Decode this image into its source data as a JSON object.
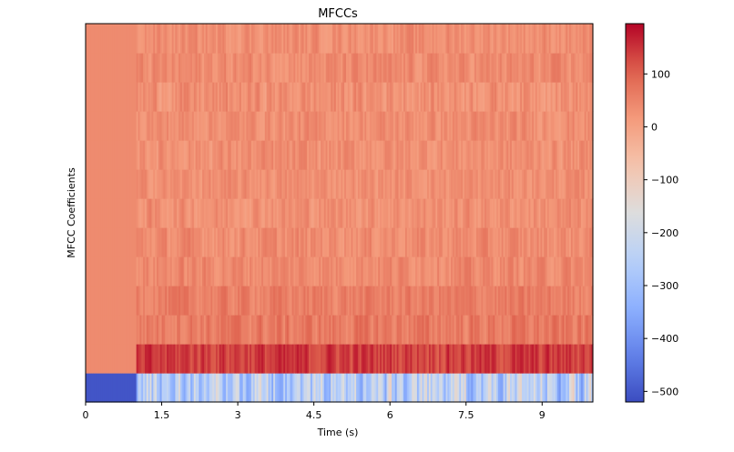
{
  "chart_data": {
    "type": "heatmap",
    "title": "MFCCs",
    "xlabel": "Time (s)",
    "ylabel": "MFCC Coefficients",
    "xlim": [
      0,
      10
    ],
    "x_ticks": [
      0,
      1.5,
      3,
      4.5,
      6,
      7.5,
      9
    ],
    "x_tick_labels": [
      "0",
      "1.5",
      "3",
      "4.5",
      "6",
      "7.5",
      "9"
    ],
    "n_coefficients": 13,
    "silence_until_s": 1.0,
    "colormap": "coolwarm",
    "colorbar": {
      "vmin": -520,
      "vmax": 195,
      "ticks": [
        100,
        0,
        -100,
        -200,
        -300,
        -400,
        -500
      ],
      "tick_labels": [
        "100",
        "0",
        "−100",
        "−200",
        "−300",
        "−400",
        "−500"
      ]
    },
    "coefficient_levels": [
      {
        "coef": 0,
        "silence": -505,
        "min": -420,
        "max": -80
      },
      {
        "coef": 1,
        "silence": 40,
        "min": 90,
        "max": 190
      },
      {
        "coef": 2,
        "silence": 40,
        "min": 20,
        "max": 110
      },
      {
        "coef": 3,
        "silence": 40,
        "min": 20,
        "max": 95
      },
      {
        "coef": 4,
        "silence": 40,
        "min": 5,
        "max": 80
      },
      {
        "coef": 5,
        "silence": 40,
        "min": 0,
        "max": 75
      },
      {
        "coef": 6,
        "silence": 40,
        "min": -5,
        "max": 70
      },
      {
        "coef": 7,
        "silence": 40,
        "min": 0,
        "max": 65
      },
      {
        "coef": 8,
        "silence": 40,
        "min": -5,
        "max": 70
      },
      {
        "coef": 9,
        "silence": 40,
        "min": 0,
        "max": 70
      },
      {
        "coef": 10,
        "silence": 40,
        "min": -10,
        "max": 75
      },
      {
        "coef": 11,
        "silence": 40,
        "min": 0,
        "max": 75
      },
      {
        "coef": 12,
        "silence": 40,
        "min": 0,
        "max": 70
      }
    ]
  }
}
